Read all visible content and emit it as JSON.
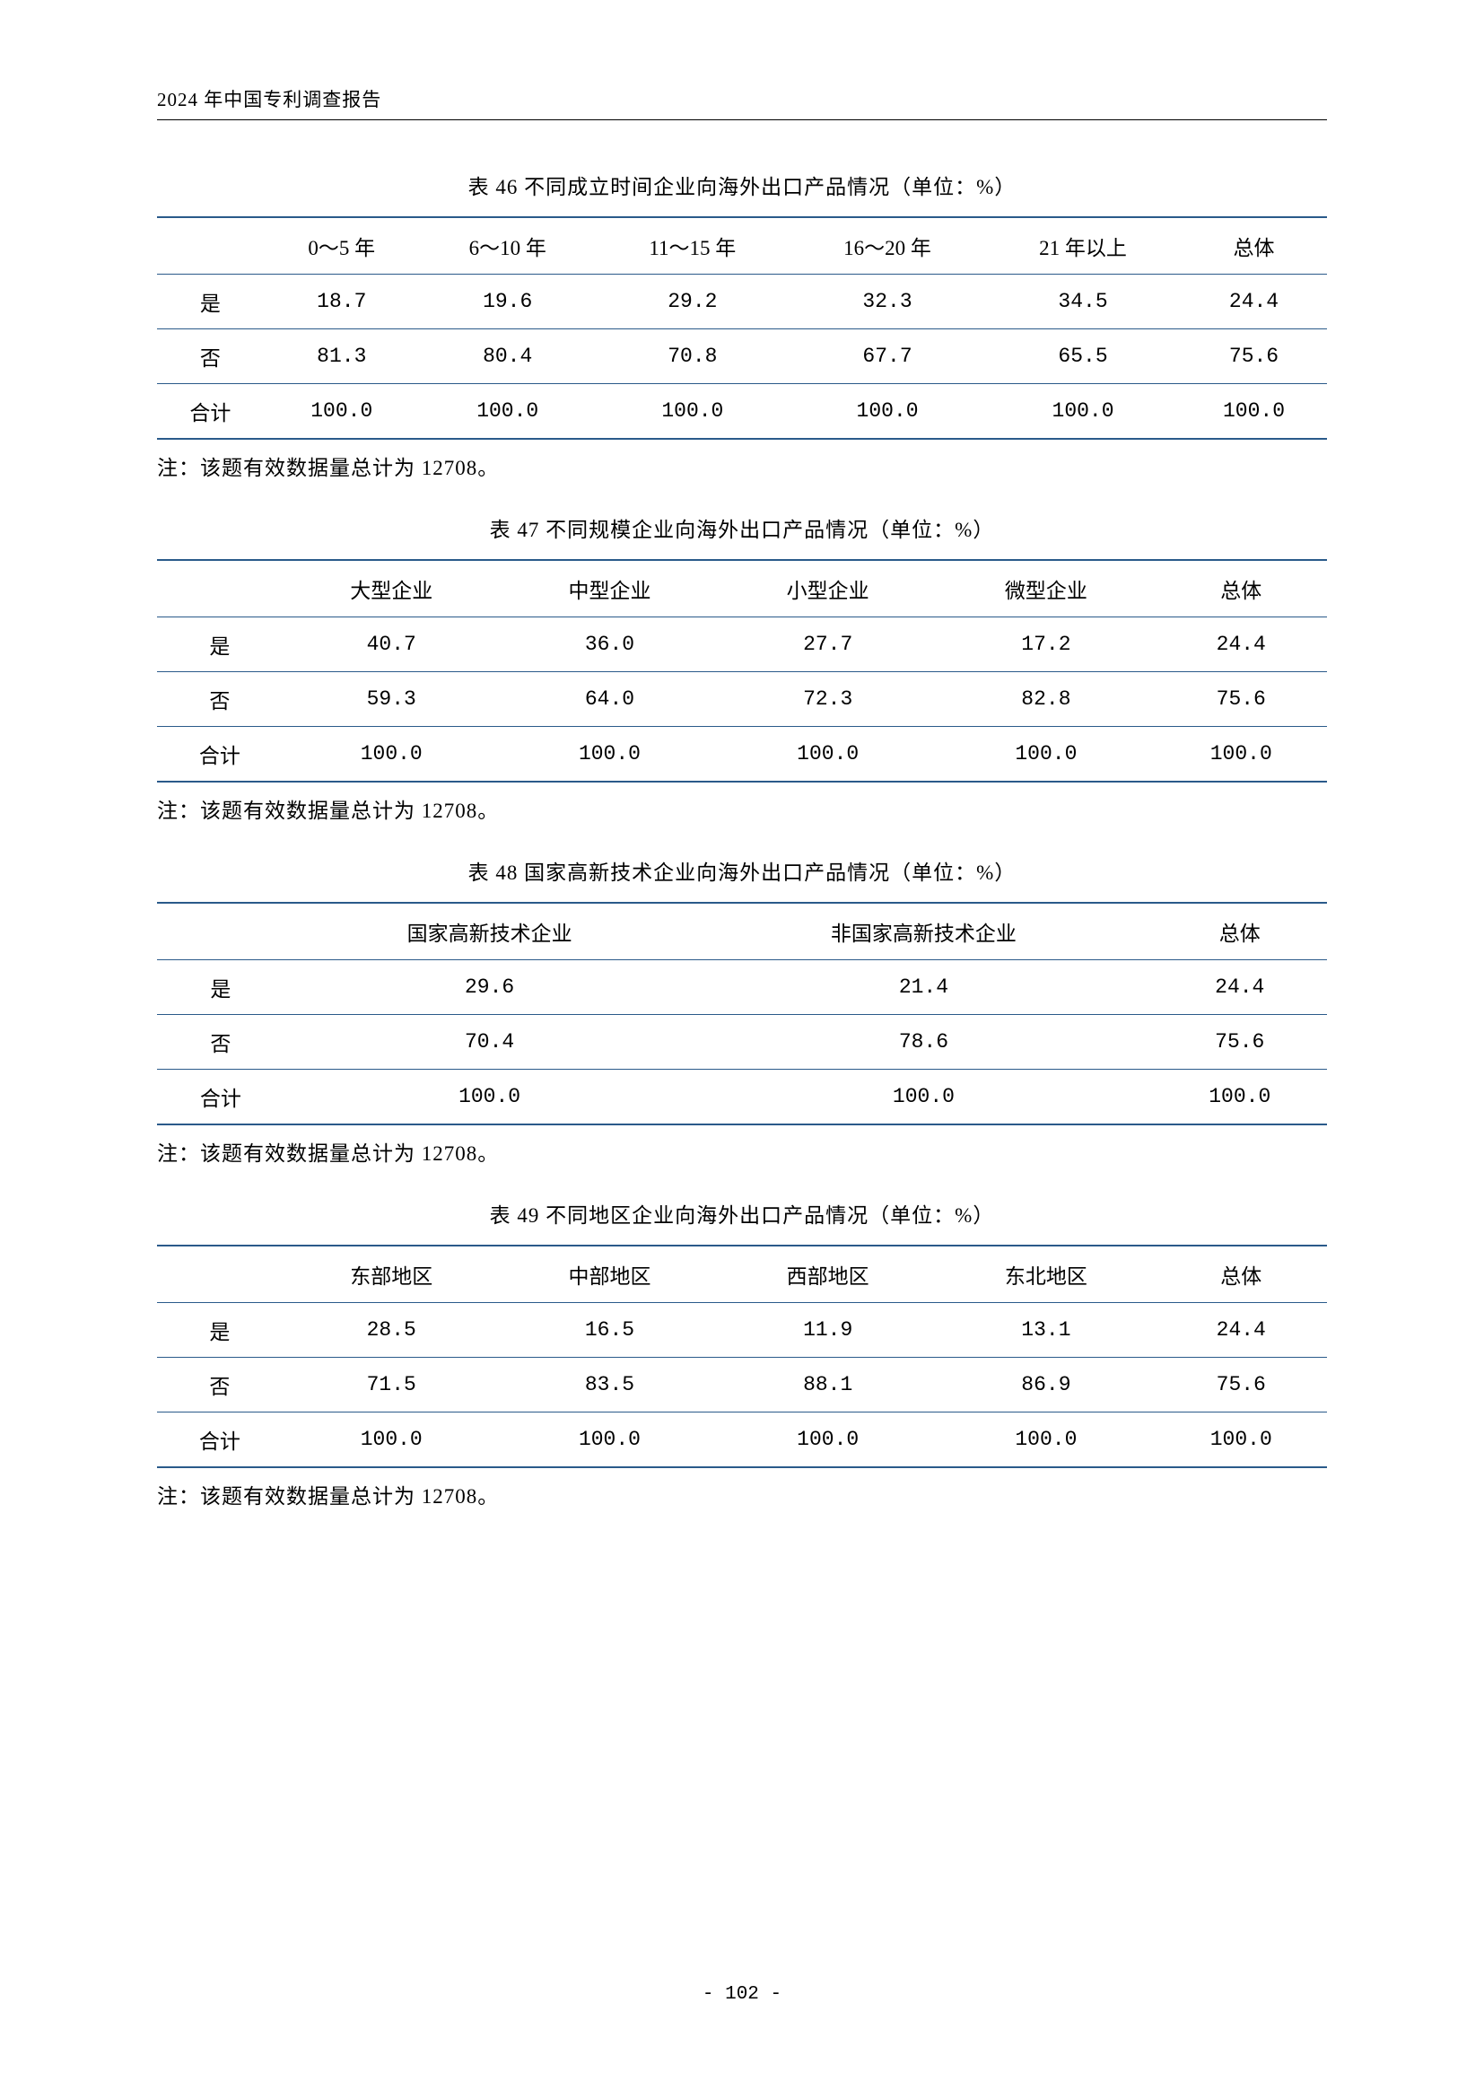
{
  "header": "2024 年中国专利调查报告",
  "page_number": "- 102 -",
  "border_color": "#2a5a8a",
  "tables": [
    {
      "title": "表 46  不同成立时间企业向海外出口产品情况（单位：%）",
      "columns": [
        "",
        "0～5 年",
        "6～10 年",
        "11～15 年",
        "16～20 年",
        "21 年以上",
        "总体"
      ],
      "rows": [
        [
          "是",
          "18.7",
          "19.6",
          "29.2",
          "32.3",
          "34.5",
          "24.4"
        ],
        [
          "否",
          "81.3",
          "80.4",
          "70.8",
          "67.7",
          "65.5",
          "75.6"
        ],
        [
          "合计",
          "100.0",
          "100.0",
          "100.0",
          "100.0",
          "100.0",
          "100.0"
        ]
      ],
      "note": "注：该题有效数据量总计为 12708。"
    },
    {
      "title": "表 47  不同规模企业向海外出口产品情况（单位：%）",
      "columns": [
        "",
        "大型企业",
        "中型企业",
        "小型企业",
        "微型企业",
        "总体"
      ],
      "rows": [
        [
          "是",
          "40.7",
          "36.0",
          "27.7",
          "17.2",
          "24.4"
        ],
        [
          "否",
          "59.3",
          "64.0",
          "72.3",
          "82.8",
          "75.6"
        ],
        [
          "合计",
          "100.0",
          "100.0",
          "100.0",
          "100.0",
          "100.0"
        ]
      ],
      "note": "注：该题有效数据量总计为 12708。"
    },
    {
      "title": "表 48  国家高新技术企业向海外出口产品情况（单位：%）",
      "columns": [
        "",
        "国家高新技术企业",
        "非国家高新技术企业",
        "总体"
      ],
      "rows": [
        [
          "是",
          "29.6",
          "21.4",
          "24.4"
        ],
        [
          "否",
          "70.4",
          "78.6",
          "75.6"
        ],
        [
          "合计",
          "100.0",
          "100.0",
          "100.0"
        ]
      ],
      "note": "注：该题有效数据量总计为 12708。"
    },
    {
      "title": "表 49  不同地区企业向海外出口产品情况（单位：%）",
      "columns": [
        "",
        "东部地区",
        "中部地区",
        "西部地区",
        "东北地区",
        "总体"
      ],
      "rows": [
        [
          "是",
          "28.5",
          "16.5",
          "11.9",
          "13.1",
          "24.4"
        ],
        [
          "否",
          "71.5",
          "83.5",
          "88.1",
          "86.9",
          "75.6"
        ],
        [
          "合计",
          "100.0",
          "100.0",
          "100.0",
          "100.0",
          "100.0"
        ]
      ],
      "note": "注：该题有效数据量总计为 12708。"
    }
  ]
}
